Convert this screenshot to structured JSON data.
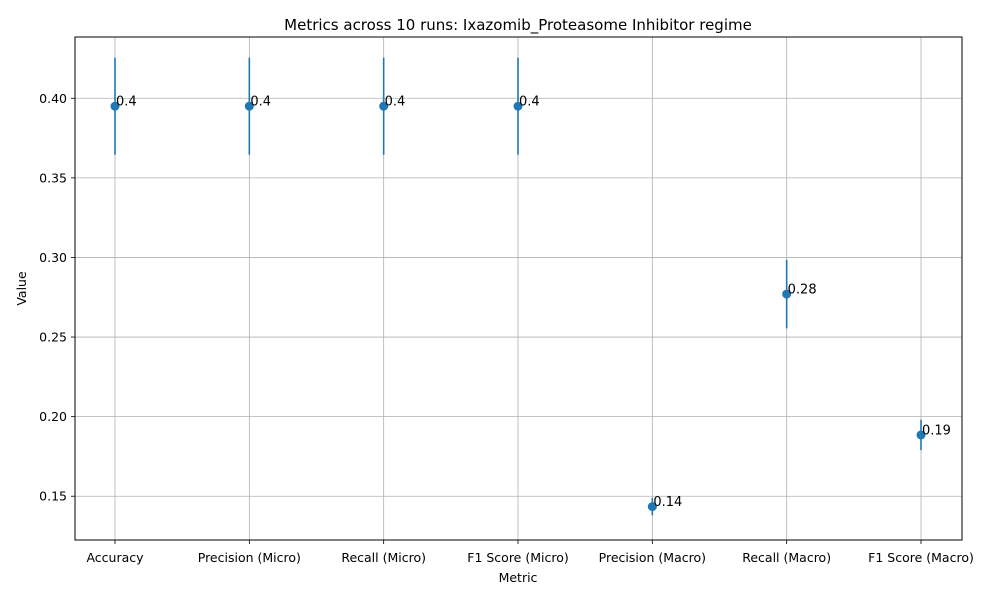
{
  "chart_data": {
    "type": "scatter",
    "title": "Metrics across 10 runs: Ixazomib_Proteasome Inhibitor regime",
    "xlabel": "Metric",
    "ylabel": "Value",
    "categories": [
      "Accuracy",
      "Precision (Micro)",
      "Recall (Micro)",
      "F1 Score (Micro)",
      "Precision (Macro)",
      "Recall (Macro)",
      "F1 Score (Macro)"
    ],
    "values": [
      0.395,
      0.395,
      0.395,
      0.395,
      0.1435,
      0.277,
      0.1885
    ],
    "error": [
      0.0305,
      0.0305,
      0.0305,
      0.0305,
      0.0055,
      0.0215,
      0.0095
    ],
    "labels": [
      "0.4",
      "0.4",
      "0.4",
      "0.4",
      "0.14",
      "0.28",
      "0.19"
    ],
    "yticks": [
      0.15,
      0.2,
      0.25,
      0.3,
      0.35,
      0.4
    ],
    "ytick_labels": [
      "0.15",
      "0.20",
      "0.25",
      "0.30",
      "0.35",
      "0.40"
    ],
    "ylim": [
      0.1225,
      0.4385
    ],
    "grid": true,
    "color": "#1f77b4"
  }
}
